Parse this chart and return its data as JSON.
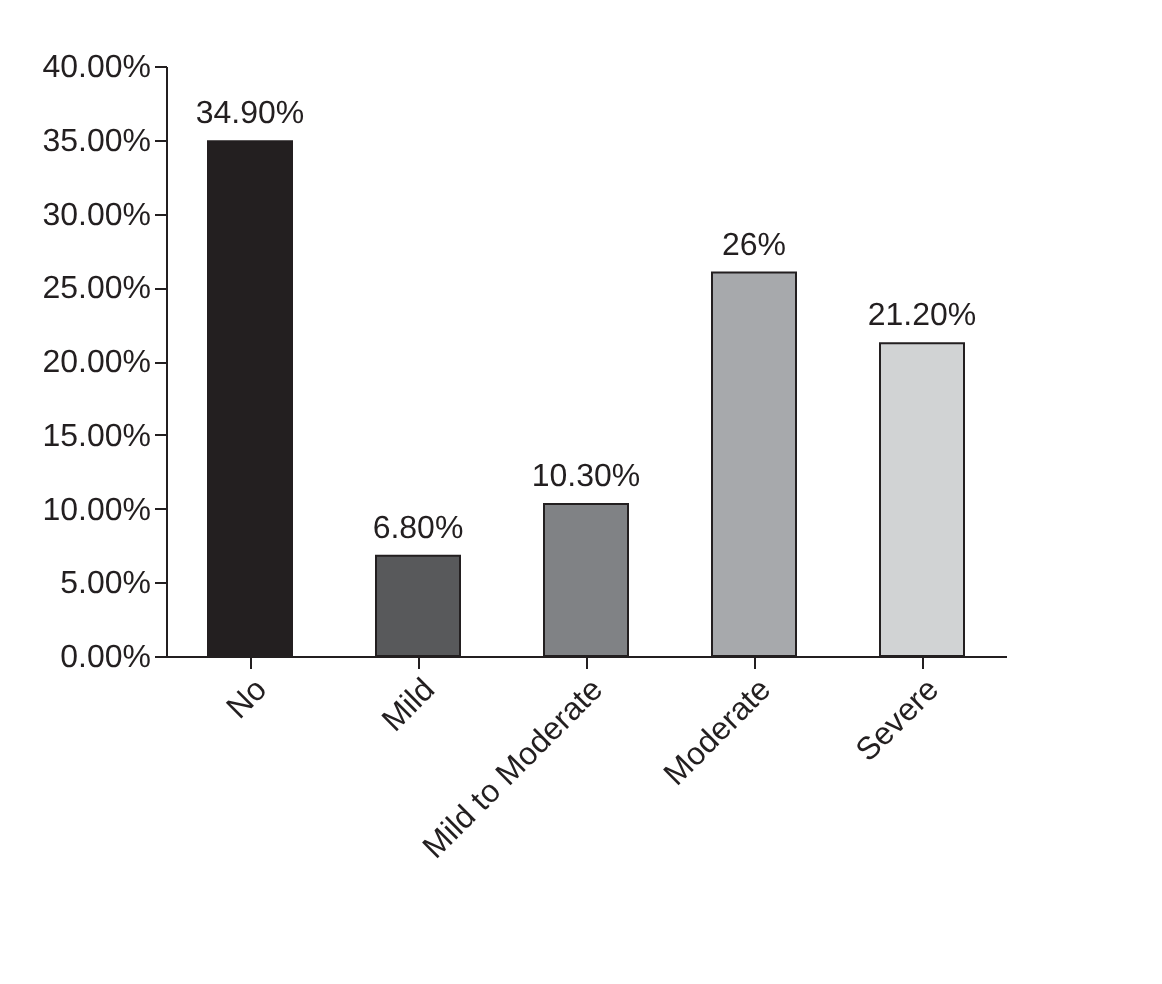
{
  "chart_data": {
    "type": "bar",
    "categories": [
      "No",
      "Mild",
      "Mild to Moderate",
      "Moderate",
      "Severe"
    ],
    "values": [
      34.9,
      6.8,
      10.3,
      26,
      21.2
    ],
    "colors": [
      "#231f20",
      "#58595b",
      "#808285",
      "#a7a9ac",
      "#d1d3d4"
    ],
    "value_labels": [
      "34.90%",
      "6.80%",
      "10.30%",
      "26%",
      "21.20%"
    ],
    "ylim": [
      0,
      40
    ],
    "yticks": [
      {
        "value": 0,
        "label": "0.00%"
      },
      {
        "value": 5,
        "label": "5.00%"
      },
      {
        "value": 10,
        "label": "10.00%"
      },
      {
        "value": 15,
        "label": "15.00%"
      },
      {
        "value": 20,
        "label": "20.00%"
      },
      {
        "value": 25,
        "label": "25.00%"
      },
      {
        "value": 30,
        "label": "30.00%"
      },
      {
        "value": 35,
        "label": "35.00%"
      },
      {
        "value": 40,
        "label": "40.00%"
      }
    ],
    "grid": false
  }
}
